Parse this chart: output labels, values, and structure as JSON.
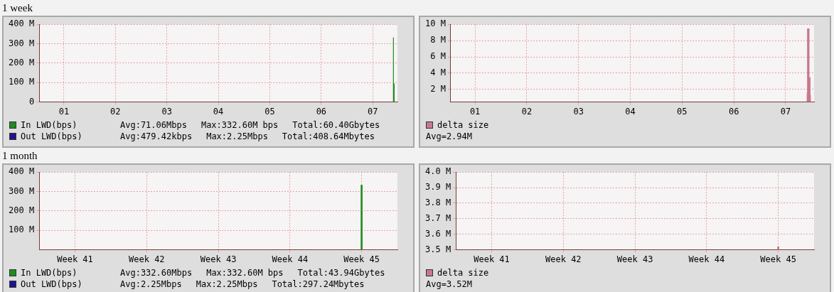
{
  "chart_data": [
    {
      "type": "area",
      "title": "1 week",
      "xlim": [
        0.52,
        7.48
      ],
      "xticks": [
        {
          "value": 1,
          "label": "01"
        },
        {
          "value": 2,
          "label": "02"
        },
        {
          "value": 3,
          "label": "03"
        },
        {
          "value": 4,
          "label": "04"
        },
        {
          "value": 5,
          "label": "05"
        },
        {
          "value": 6,
          "label": "06"
        },
        {
          "value": 7,
          "label": "07"
        }
      ],
      "ylim": [
        0,
        400
      ],
      "yticks": [
        0,
        {
          "value": 100,
          "label": "100 M"
        },
        {
          "value": 200,
          "label": "200 M"
        },
        {
          "value": 300,
          "label": "300 M"
        },
        {
          "value": 400,
          "label": "400 M"
        }
      ],
      "grid": true,
      "legend": "bottom",
      "marker": "none",
      "series": [
        {
          "name": "In LWD(bps)",
          "color": "#1e8c1e",
          "x": [
            7.39,
            7.39,
            7.41,
            7.41,
            7.425,
            7.425
          ],
          "values": [
            0,
            332.6,
            332.6,
            95,
            95,
            0
          ]
        },
        {
          "name": "Out LWD(bps)",
          "color": "#22148c"
        }
      ],
      "annotations": [
        "Avg:71.06Mbps",
        "Max:332.60M bps",
        "Total:60.40Gbytes",
        "Avg:479.42kbps",
        "Max:2.25Mbps",
        "Total:408.64Mbytes"
      ]
    },
    {
      "type": "area",
      "xlim": [
        0.53,
        7.55
      ],
      "xticks": [
        {
          "value": 1,
          "label": "01"
        },
        {
          "value": 2,
          "label": "02"
        },
        {
          "value": 3,
          "label": "03"
        },
        {
          "value": 4,
          "label": "04"
        },
        {
          "value": 5,
          "label": "05"
        },
        {
          "value": 6,
          "label": "06"
        },
        {
          "value": 7,
          "label": "07"
        }
      ],
      "ylim": [
        0.45,
        10
      ],
      "yticks": [
        {
          "value": 2,
          "label": "2 M"
        },
        {
          "value": 4,
          "label": "4 M"
        },
        {
          "value": 6,
          "label": "6 M"
        },
        {
          "value": 8,
          "label": "8 M"
        },
        {
          "value": 10,
          "label": "10 M"
        }
      ],
      "grid": true,
      "legend": "bottom",
      "marker": "none",
      "series": [
        {
          "name": "delta size",
          "color": "#c8788c",
          "x": [
            7.405,
            7.415,
            7.415,
            7.46,
            7.46,
            7.48,
            7.48,
            7.49
          ],
          "values": [
            1.6,
            1.6,
            9.5,
            9.5,
            3.5,
            3.5,
            1.3,
            1.3
          ]
        }
      ],
      "annotations": [
        "Avg=2.94M"
      ]
    },
    {
      "type": "bar",
      "title": "1 month",
      "categories": [
        "Week 41",
        "Week 42",
        "Week 43",
        "Week 44",
        "Week 45"
      ],
      "ylim": [
        0,
        400
      ],
      "yticks": [
        {
          "value": 100,
          "label": "100 M"
        },
        {
          "value": 200,
          "label": "200 M"
        },
        {
          "value": 300,
          "label": "300 M"
        },
        {
          "value": 400,
          "label": "400 M"
        }
      ],
      "grid": true,
      "legend": "bottom",
      "marker": "none",
      "series": [
        {
          "name": "In LWD(bps)",
          "color": "#1e8c1e",
          "values": [
            null,
            null,
            null,
            null,
            332.6
          ]
        },
        {
          "name": "Out LWD(bps)",
          "color": "#22148c",
          "values": [
            null,
            null,
            null,
            null,
            null
          ]
        }
      ],
      "annotations": [
        "Avg:332.60Mbps",
        "Max:332.60M bps",
        "Total:43.94Gbytes",
        "Avg:2.25Mbps",
        "Max:2.25Mbps",
        "Total:297.24Mbytes"
      ]
    },
    {
      "type": "bar",
      "categories": [
        "Week 41",
        "Week 42",
        "Week 43",
        "Week 44",
        "Week 45"
      ],
      "ylim": [
        3.5,
        4.0
      ],
      "yticks": [
        {
          "value": 3.5,
          "label": "3.5 M"
        },
        {
          "value": 3.6,
          "label": "3.6 M"
        },
        {
          "value": 3.7,
          "label": "3.7 M"
        },
        {
          "value": 3.8,
          "label": "3.8 M"
        },
        {
          "value": 3.9,
          "label": "3.9 M"
        },
        {
          "value": 4.0,
          "label": "4.0 M"
        }
      ],
      "grid": true,
      "legend": "bottom",
      "marker": "none",
      "series": [
        {
          "name": "delta size",
          "color": "#c8788c",
          "values": [
            null,
            null,
            null,
            null,
            3.52
          ]
        }
      ],
      "annotations": [
        "Avg=3.52M"
      ]
    }
  ]
}
